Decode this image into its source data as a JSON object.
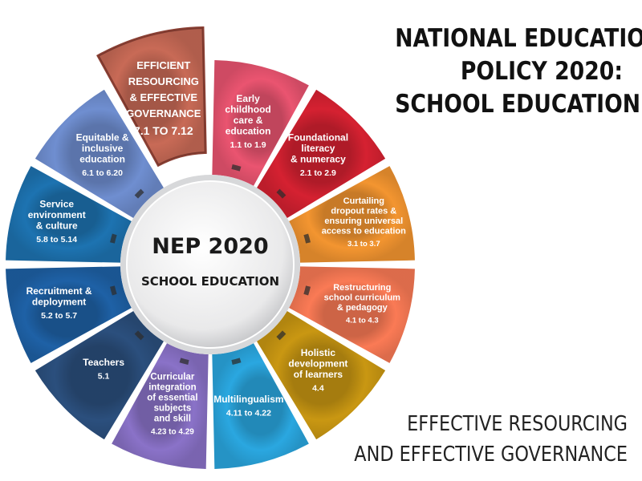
{
  "title": {
    "line1": "NATIONAL EDUCATION",
    "line2": "POLICY 2020:",
    "line3": "SCHOOL EDUCATION"
  },
  "footer": {
    "line1": "EFFECTIVE RESOURCING",
    "line2": "AND EFFECTIVE GOVERNANCE"
  },
  "hub": {
    "title": "NEP 2020",
    "subtitle": "SCHOOL EDUCATION"
  },
  "segments": [
    {
      "label": [
        "Early",
        "childhood",
        "care &",
        "education"
      ],
      "code": "1.1 to 1.9",
      "color": "#ea5470",
      "highlighted": false
    },
    {
      "label": [
        "Foundational",
        "literacy",
        "& numeracy"
      ],
      "code": "2.1 to 2.9",
      "color": "#d52131",
      "highlighted": false
    },
    {
      "label": [
        "Curtailing",
        "dropout rates &",
        "ensuring universal",
        "access to education"
      ],
      "code": "3.1 to 3.7",
      "color": "#f39530",
      "highlighted": false
    },
    {
      "label": [
        "Restructuring",
        "school curriculum",
        "& pedagogy"
      ],
      "code": "4.1 to 4.3",
      "color": "#fa7a55",
      "highlighted": false
    },
    {
      "label": [
        "Holistic",
        "development",
        "of learners"
      ],
      "code": "4.4",
      "color": "#c99712",
      "highlighted": false
    },
    {
      "label": [
        "Multilingualism"
      ],
      "code": "4.11 to 4.22",
      "color": "#2aa7e0",
      "highlighted": false
    },
    {
      "label": [
        "Curricular",
        "integration",
        "of essential",
        "subjects",
        "and skill"
      ],
      "code": "4.23 to 4.29",
      "color": "#8a72c8",
      "highlighted": false
    },
    {
      "label": [
        "Teachers"
      ],
      "code": "5.1",
      "color": "#2b4f7d",
      "highlighted": false
    },
    {
      "label": [
        "Recruitment &",
        "deployment"
      ],
      "code": "5.2 to 5.7",
      "color": "#1e61a6",
      "highlighted": false
    },
    {
      "label": [
        "Service",
        "environment",
        "& culture"
      ],
      "code": "5.8 to 5.14",
      "color": "#1d73b1",
      "highlighted": false
    },
    {
      "label": [
        "Equitable &",
        "inclusive",
        "education"
      ],
      "code": "6.1 to 6.20",
      "color": "#6f8ed0",
      "highlighted": false
    },
    {
      "label": [
        "EFFICIENT",
        "RESOURCING",
        "& EFFECTIVE",
        "GOVERNANCE"
      ],
      "code": "7.1 TO 7.12",
      "color": "#c86a56",
      "highlighted": true
    }
  ]
}
